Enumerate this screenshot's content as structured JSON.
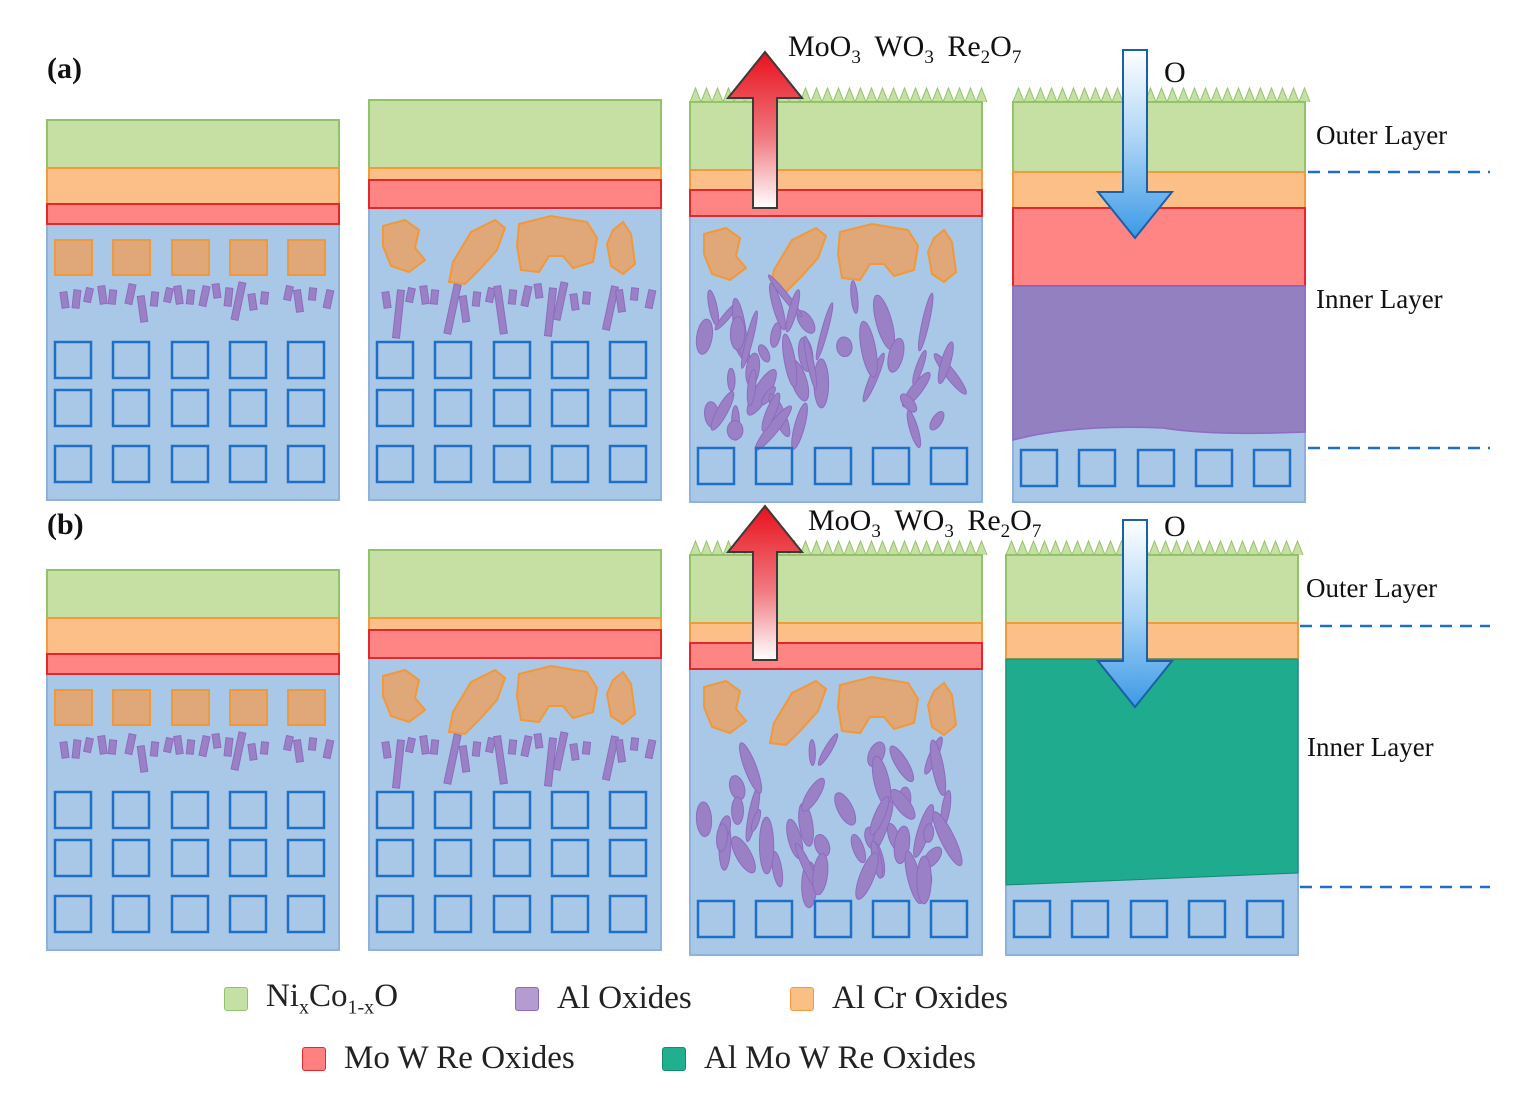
{
  "panels": {
    "a_label": "(a)",
    "b_label": "(b)"
  },
  "volatile": {
    "a": {
      "moo3": "MoO3",
      "wo3": "WO3",
      "re2o7": "Re2O7"
    },
    "b": {
      "moo3": "MoO3",
      "wo3": "WO3",
      "re2o7": "Re2O7"
    }
  },
  "oxygen": {
    "a": "O",
    "b": "O"
  },
  "side_labels": {
    "a_outer": "Outer Layer",
    "a_inner": "Inner Layer",
    "b_outer": "Outer Layer",
    "b_inner": "Inner Layer"
  },
  "legend": [
    {
      "key": "nico",
      "label": "NixCo1-xO",
      "color": "#c5e0a5"
    },
    {
      "key": "al",
      "label": "Al Oxides",
      "color": "#b49bd0"
    },
    {
      "key": "alcr",
      "label": "Al Cr Oxides",
      "color": "#f9bf85"
    },
    {
      "key": "mowre",
      "label": "Mo W Re Oxides",
      "color": "#ff8080"
    },
    {
      "key": "almowre",
      "label": "Al Mo W Re Oxides",
      "color": "#20b08f"
    }
  ],
  "colors": {
    "substrate": "#a9c8e8",
    "substrate_stroke": "#8fb2da",
    "grid_stroke": "#1f6fc4",
    "nico": "#c6e0a4",
    "nico_stroke": "#92c36a",
    "alcr": "#fbbf87",
    "alcr_stroke": "#f39a3c",
    "mowre": "#ff8585",
    "mowre_stroke": "#e0282d",
    "particle": "#e0a878",
    "particle_stroke": "#f0983a",
    "al_oxide": "#9a80c4",
    "al_oxide_stroke": "#8d6bc0",
    "inner_purple": "#9380c0",
    "inner_green": "#1eab8e",
    "arrow_up_top": "#e8101c",
    "arrow_o": "#4aa3ea",
    "dash": "#1e6fc8"
  }
}
